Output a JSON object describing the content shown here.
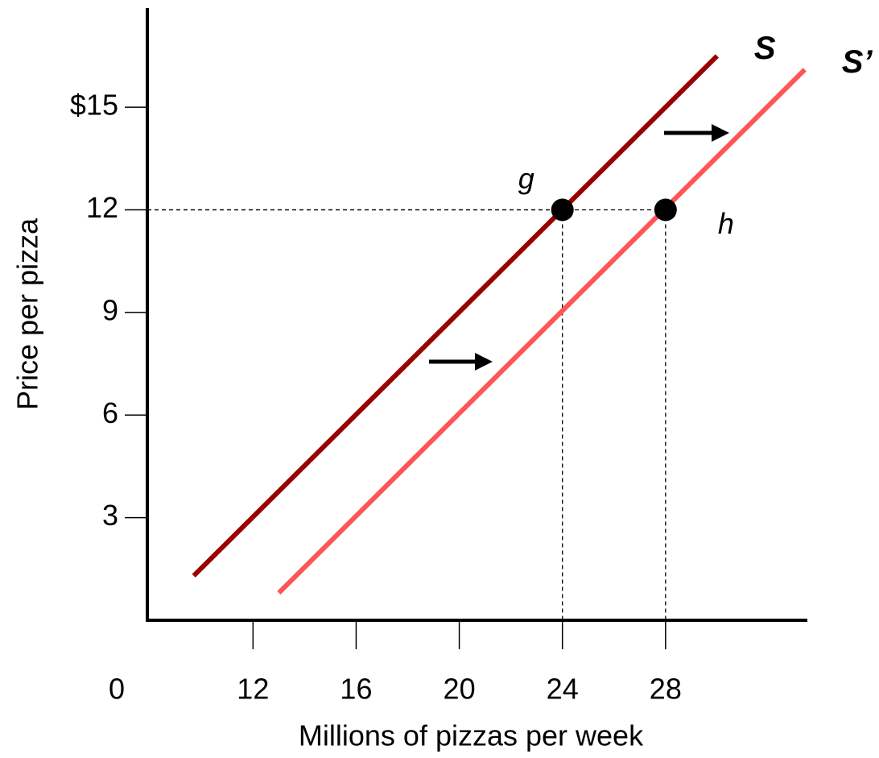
{
  "chart_data": {
    "type": "line",
    "x_label": "Millions of pizzas per week",
    "y_label": "Price per pizza",
    "origin_label": "0",
    "xlim": [
      7.9,
      33.5
    ],
    "ylim": [
      0,
      17.9
    ],
    "xticks": [
      12,
      16,
      20,
      24,
      28
    ],
    "yticks": [
      3,
      6,
      9,
      12,
      {
        "value": 15,
        "label": "$15"
      }
    ],
    "series": [
      {
        "name": "S",
        "color": "#990000",
        "x": [
          9.7,
          30
        ],
        "values": [
          1.3,
          16.5
        ]
      },
      {
        "name": "S’",
        "color": "#ff5555",
        "x": [
          13,
          33.4
        ],
        "values": [
          0.8,
          16.1
        ]
      }
    ],
    "points": [
      {
        "label": "g",
        "x": 24,
        "y": 12
      },
      {
        "label": "h",
        "x": 28,
        "y": 12
      }
    ]
  }
}
